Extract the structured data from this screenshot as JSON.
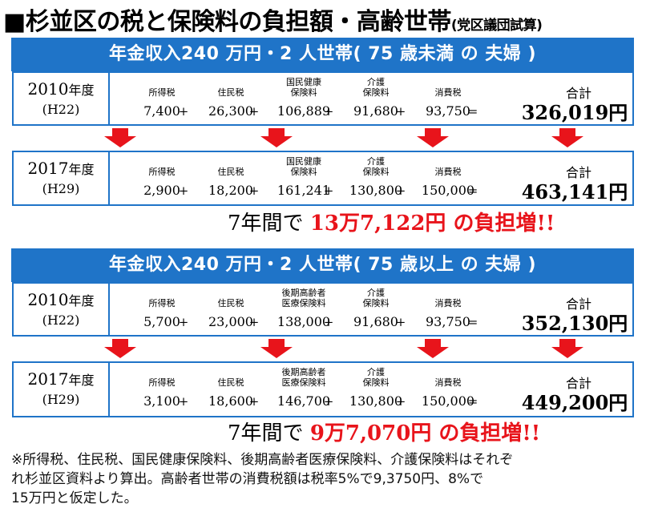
{
  "title": {
    "main": "■杉並区の税と保険料の負担額・高齢世帯",
    "sub": "(党区議団試算)"
  },
  "ops": {
    "plus": "+",
    "eq": "="
  },
  "section1": {
    "banner": "年金収入240 万円・2 人世帯( 75 歳未満 の 夫婦 )",
    "rows": [
      {
        "year": "2010",
        "year_suffix": "年度",
        "era": "(H22)",
        "labels": [
          "所得税",
          "住民税",
          "国民健康\n保険料",
          "介護\n保険料",
          "消費税"
        ],
        "values": [
          "7,400",
          "26,300",
          "106,889",
          "91,680",
          "93,750"
        ],
        "total_label": "合計",
        "total": "326,019円"
      },
      {
        "year": "2017",
        "year_suffix": "年度",
        "era": "(H29)",
        "labels": [
          "所得税",
          "住民税",
          "国民健康\n保険料",
          "介護\n保険料",
          "消費税"
        ],
        "values": [
          "2,900",
          "18,200",
          "161,241",
          "130,800",
          "150,000"
        ],
        "total_label": "合計",
        "total": "463,141円"
      }
    ],
    "increase": {
      "prefix": "7年間で ",
      "amount": "13万7,122円",
      "suffix": " の負担増!!"
    }
  },
  "section2": {
    "banner": "年金収入240 万円・2 人世帯( 75 歳以上 の 夫婦 )",
    "rows": [
      {
        "year": "2010",
        "year_suffix": "年度",
        "era": "(H22)",
        "labels": [
          "所得税",
          "住民税",
          "後期高齢者\n医療保険料",
          "介護\n保険料",
          "消費税"
        ],
        "values": [
          "5,700",
          "23,000",
          "138,000",
          "91,680",
          "93,750"
        ],
        "total_label": "合計",
        "total": "352,130円"
      },
      {
        "year": "2017",
        "year_suffix": "年度",
        "era": "(H29)",
        "labels": [
          "所得税",
          "住民税",
          "後期高齢者\n医療保険料",
          "介護\n保険料",
          "消費税"
        ],
        "values": [
          "3,100",
          "18,600",
          "146,700",
          "130,800",
          "150,000"
        ],
        "total_label": "合計",
        "total": "449,200円"
      }
    ],
    "increase": {
      "prefix": "7年間で ",
      "amount": "9万7,070円",
      "suffix": " の負担増!!"
    }
  },
  "note": [
    "※所得税、住民税、国民健康保険料、後期高齢者医療保険料、介護保険料はそれぞ",
    "れ杉並区資料より算出。高齢者世帯の消費税額は税率5%で9,3750円、8%で",
    "15万円と仮定した。"
  ],
  "colors": {
    "blue": "#1f74c8",
    "red": "#e8141b"
  }
}
